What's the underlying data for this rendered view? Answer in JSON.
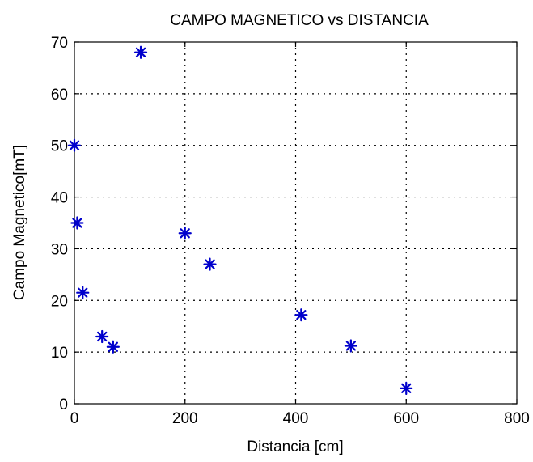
{
  "chart_data": {
    "type": "scatter",
    "title": "CAMPO MAGNETICO vs DISTANCIA",
    "xlabel": "Distancia [cm]",
    "ylabel": "Campo Magnetico[mT]",
    "xlim": [
      0,
      800
    ],
    "ylim": [
      0,
      70
    ],
    "x_ticks": [
      "0",
      "200",
      "400",
      "600",
      "800"
    ],
    "y_ticks": [
      "0",
      "10",
      "20",
      "30",
      "40",
      "50",
      "60",
      "70"
    ],
    "grid": true,
    "marker": "*",
    "marker_color": "#0000cc",
    "series": [
      {
        "x": [
          0,
          5,
          15,
          50,
          70,
          120,
          200,
          245,
          410,
          500,
          600
        ],
        "y": [
          50,
          35,
          21.5,
          13,
          11,
          68,
          33,
          27,
          17.2,
          11.2,
          3
        ]
      }
    ]
  }
}
